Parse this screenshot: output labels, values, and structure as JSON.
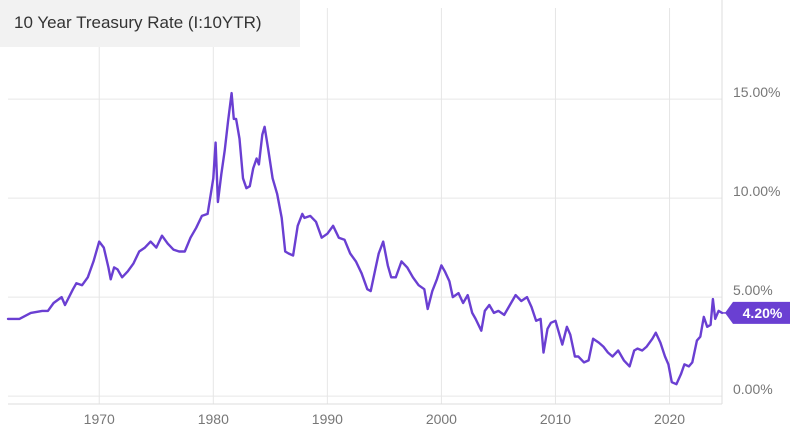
{
  "chart_data": {
    "type": "line",
    "title": "10 Year Treasury Rate (I:10YTR)",
    "xlabel": "",
    "ylabel": "",
    "xlim": [
      1962,
      2024.6
    ],
    "ylim": [
      -0.4,
      19.6
    ],
    "x_ticks": [
      1970,
      1980,
      1990,
      2000,
      2010,
      2020
    ],
    "y_ticks": [
      {
        "value": 0,
        "label": "0.00%"
      },
      {
        "value": 5,
        "label": "5.00%"
      },
      {
        "value": 10,
        "label": "10.00%"
      },
      {
        "value": 15,
        "label": "15.00%"
      }
    ],
    "grid": true,
    "last_value_label": "4.20%",
    "series": [
      {
        "color": "#6a3fd2",
        "x": [
          1962.0,
          1963.0,
          1964.0,
          1965.0,
          1965.5,
          1966.0,
          1966.7,
          1967.0,
          1967.7,
          1968.0,
          1968.5,
          1969.0,
          1969.5,
          1970.0,
          1970.4,
          1970.8,
          1971.0,
          1971.3,
          1971.6,
          1972.0,
          1972.5,
          1973.0,
          1973.5,
          1974.0,
          1974.5,
          1975.0,
          1975.5,
          1976.0,
          1976.5,
          1977.0,
          1977.5,
          1978.0,
          1978.5,
          1979.0,
          1979.5,
          1980.0,
          1980.2,
          1980.4,
          1980.7,
          1981.0,
          1981.3,
          1981.6,
          1981.8,
          1982.0,
          1982.3,
          1982.6,
          1982.9,
          1983.2,
          1983.5,
          1983.8,
          1984.0,
          1984.3,
          1984.5,
          1984.8,
          1985.2,
          1985.6,
          1986.0,
          1986.3,
          1986.6,
          1987.0,
          1987.4,
          1987.8,
          1988.0,
          1988.5,
          1989.0,
          1989.5,
          1990.0,
          1990.5,
          1991.0,
          1991.5,
          1992.0,
          1992.5,
          1993.0,
          1993.5,
          1993.8,
          1994.2,
          1994.5,
          1994.9,
          1995.3,
          1995.6,
          1996.0,
          1996.5,
          1997.0,
          1997.5,
          1998.0,
          1998.5,
          1998.8,
          1999.2,
          1999.6,
          2000.0,
          2000.3,
          2000.7,
          2001.0,
          2001.5,
          2001.9,
          2002.3,
          2002.7,
          2003.0,
          2003.5,
          2003.8,
          2004.2,
          2004.6,
          2005.0,
          2005.5,
          2006.0,
          2006.5,
          2007.0,
          2007.5,
          2007.9,
          2008.3,
          2008.7,
          2008.95,
          2009.3,
          2009.6,
          2010.0,
          2010.3,
          2010.6,
          2011.0,
          2011.3,
          2011.7,
          2012.0,
          2012.5,
          2012.9,
          2013.3,
          2013.8,
          2014.2,
          2014.6,
          2015.0,
          2015.5,
          2016.0,
          2016.5,
          2016.9,
          2017.2,
          2017.6,
          2018.0,
          2018.5,
          2018.8,
          2019.2,
          2019.6,
          2019.9,
          2020.2,
          2020.6,
          2021.0,
          2021.3,
          2021.7,
          2022.0,
          2022.4,
          2022.7,
          2023.0,
          2023.3,
          2023.6,
          2023.8,
          2024.0,
          2024.3,
          2024.6
        ],
        "y": [
          3.9,
          3.9,
          4.2,
          4.3,
          4.3,
          4.7,
          5.0,
          4.6,
          5.4,
          5.7,
          5.6,
          6.0,
          6.8,
          7.8,
          7.5,
          6.5,
          5.9,
          6.5,
          6.4,
          6.0,
          6.3,
          6.7,
          7.3,
          7.5,
          7.8,
          7.5,
          8.1,
          7.7,
          7.4,
          7.3,
          7.3,
          8.0,
          8.5,
          9.1,
          9.2,
          11.0,
          12.8,
          9.8,
          11.2,
          12.4,
          13.9,
          15.3,
          14.0,
          14.0,
          13.0,
          11.0,
          10.5,
          10.6,
          11.5,
          12.0,
          11.7,
          13.2,
          13.6,
          12.5,
          11.0,
          10.2,
          9.0,
          7.3,
          7.2,
          7.1,
          8.6,
          9.2,
          9.0,
          9.1,
          8.8,
          8.0,
          8.2,
          8.6,
          8.0,
          7.9,
          7.2,
          6.8,
          6.2,
          5.4,
          5.3,
          6.4,
          7.2,
          7.8,
          6.6,
          6.0,
          6.0,
          6.8,
          6.5,
          6.0,
          5.6,
          5.4,
          4.4,
          5.3,
          5.9,
          6.6,
          6.3,
          5.8,
          5.0,
          5.2,
          4.7,
          5.1,
          4.2,
          3.9,
          3.3,
          4.3,
          4.6,
          4.2,
          4.3,
          4.1,
          4.6,
          5.1,
          4.8,
          5.0,
          4.5,
          3.8,
          3.9,
          2.2,
          3.4,
          3.7,
          3.8,
          3.2,
          2.6,
          3.5,
          3.1,
          2.0,
          2.0,
          1.7,
          1.8,
          2.9,
          2.7,
          2.5,
          2.2,
          2.0,
          2.3,
          1.8,
          1.5,
          2.3,
          2.4,
          2.3,
          2.5,
          2.9,
          3.2,
          2.7,
          2.0,
          1.6,
          0.7,
          0.6,
          1.1,
          1.6,
          1.5,
          1.7,
          2.8,
          3.0,
          4.0,
          3.5,
          3.6,
          4.9,
          3.9,
          4.3,
          4.2
        ]
      }
    ]
  }
}
